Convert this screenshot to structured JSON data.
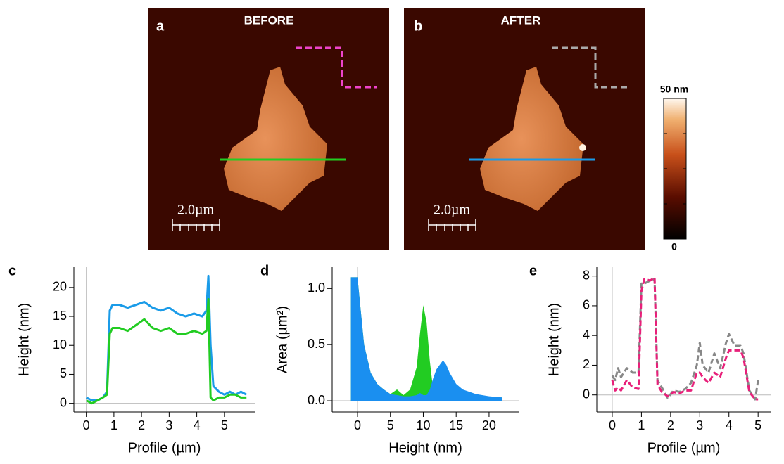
{
  "images": [
    {
      "label": "a",
      "title": "BEFORE",
      "scale_bar": "2.0µm"
    },
    {
      "label": "b",
      "title": "AFTER",
      "scale_bar": "2.0µm"
    }
  ],
  "colorbar": {
    "max_label": "50 nm",
    "min_label": "0"
  },
  "chart_data": [
    {
      "type": "line",
      "panel": "c",
      "xlabel": "Profile (µm)",
      "ylabel": "Height (nm)",
      "x": [
        0,
        0.2,
        0.4,
        0.6,
        0.75,
        0.85,
        0.95,
        1.2,
        1.5,
        1.8,
        2.1,
        2.4,
        2.7,
        3.0,
        3.3,
        3.6,
        3.9,
        4.2,
        4.35,
        4.42,
        4.5,
        4.6,
        4.8,
        5.0,
        5.2,
        5.4,
        5.6,
        5.8
      ],
      "series": [
        {
          "color": "#1a9be8",
          "values": [
            1,
            0.5,
            0.5,
            1,
            2,
            16,
            17,
            17,
            16.5,
            17,
            17.5,
            16.5,
            16,
            16.5,
            15.5,
            15,
            15.5,
            15,
            16,
            22,
            10,
            3,
            2,
            1.5,
            2,
            1.5,
            2,
            1.5
          ]
        },
        {
          "color": "#22cc22",
          "values": [
            0.5,
            0,
            0.5,
            1,
            1.5,
            12,
            13,
            13,
            12.5,
            13.5,
            14.5,
            13,
            12.5,
            13,
            12,
            12,
            12.5,
            12,
            12.5,
            18,
            1,
            0.5,
            1,
            1,
            1.5,
            1.5,
            1,
            1
          ]
        }
      ],
      "xlim": [
        -0.45,
        6.1
      ],
      "ylim": [
        -1.5,
        23.5
      ],
      "xticks": [
        0,
        1,
        2,
        3,
        4,
        5
      ],
      "yticks": [
        0,
        5,
        10,
        15,
        20
      ]
    },
    {
      "type": "area",
      "panel": "d",
      "xlabel": "Height (nm)",
      "ylabel": "Area (µm²)",
      "x": [
        -1,
        -0.5,
        0,
        0.5,
        1,
        2,
        3,
        4,
        5,
        6,
        7,
        8,
        9,
        9.5,
        10,
        10.5,
        11,
        11.5,
        12,
        12.5,
        13,
        13.5,
        14,
        15,
        16,
        18,
        20,
        22
      ],
      "series": [
        {
          "color": "#22cc22",
          "values": [
            1.1,
            1.1,
            1.1,
            0.8,
            0.5,
            0.25,
            0.15,
            0.1,
            0.06,
            0.1,
            0.05,
            0.1,
            0.3,
            0.6,
            0.85,
            0.7,
            0.35,
            0.1,
            0.04,
            0.03,
            0.03,
            0.03,
            0.03,
            0.03,
            0.03,
            0.03,
            0.03,
            0.03
          ]
        },
        {
          "color": "#1a8ff0",
          "values": [
            1.1,
            1.1,
            1.1,
            0.8,
            0.5,
            0.25,
            0.15,
            0.1,
            0.06,
            0.05,
            0.04,
            0.04,
            0.05,
            0.07,
            0.05,
            0.05,
            0.1,
            0.2,
            0.28,
            0.32,
            0.36,
            0.32,
            0.25,
            0.15,
            0.1,
            0.06,
            0.04,
            0.03
          ]
        }
      ],
      "xlim": [
        -3.85,
        24.5
      ],
      "ylim": [
        -0.1,
        1.19
      ],
      "xticks": [
        0,
        5,
        10,
        15,
        20
      ],
      "yticks": [
        {
          "value": 0,
          "label": "0.0"
        },
        {
          "value": 0.5,
          "label": "0.5"
        },
        {
          "value": 1,
          "label": "1.0"
        }
      ]
    },
    {
      "type": "line",
      "panel": "e",
      "xlabel": "Profile (µm)",
      "ylabel": "Height (nm)",
      "line_style": "dashed",
      "x": [
        0,
        0.1,
        0.2,
        0.3,
        0.5,
        0.7,
        0.9,
        1.0,
        1.1,
        1.3,
        1.45,
        1.55,
        1.7,
        1.9,
        2.1,
        2.3,
        2.5,
        2.7,
        2.9,
        3.0,
        3.1,
        3.3,
        3.5,
        3.7,
        3.9,
        4.0,
        4.2,
        4.4,
        4.5,
        4.7,
        4.9,
        5.0
      ],
      "series": [
        {
          "color": "#888888",
          "values": [
            1.3,
            1,
            1.8,
            1.2,
            1.8,
            1.5,
            1.5,
            7.5,
            7.5,
            7.7,
            7.8,
            1,
            0.5,
            -0.2,
            0.3,
            0.2,
            0.4,
            0.8,
            2,
            3.5,
            2,
            1.5,
            2.8,
            1.8,
            3.5,
            4.1,
            3.3,
            3.3,
            2.8,
            0.3,
            -0.3,
            1
          ]
        },
        {
          "color": "#e8207a",
          "values": [
            1,
            0.3,
            0.5,
            0.3,
            1,
            0.5,
            0.4,
            7,
            7.8,
            7.7,
            7.9,
            0.7,
            0.2,
            -0.1,
            0.2,
            0.1,
            0.3,
            0.3,
            1.5,
            1.5,
            1.2,
            0.8,
            1.5,
            1.2,
            2.5,
            3,
            3,
            3,
            2.5,
            0.2,
            -0.3,
            -0.3
          ]
        }
      ],
      "xlim": [
        -0.53,
        5.43
      ],
      "ylim": [
        -1.15,
        8.6
      ],
      "xticks": [
        0,
        1,
        2,
        3,
        4,
        5
      ],
      "yticks": [
        0,
        2,
        4,
        6,
        8
      ]
    }
  ]
}
